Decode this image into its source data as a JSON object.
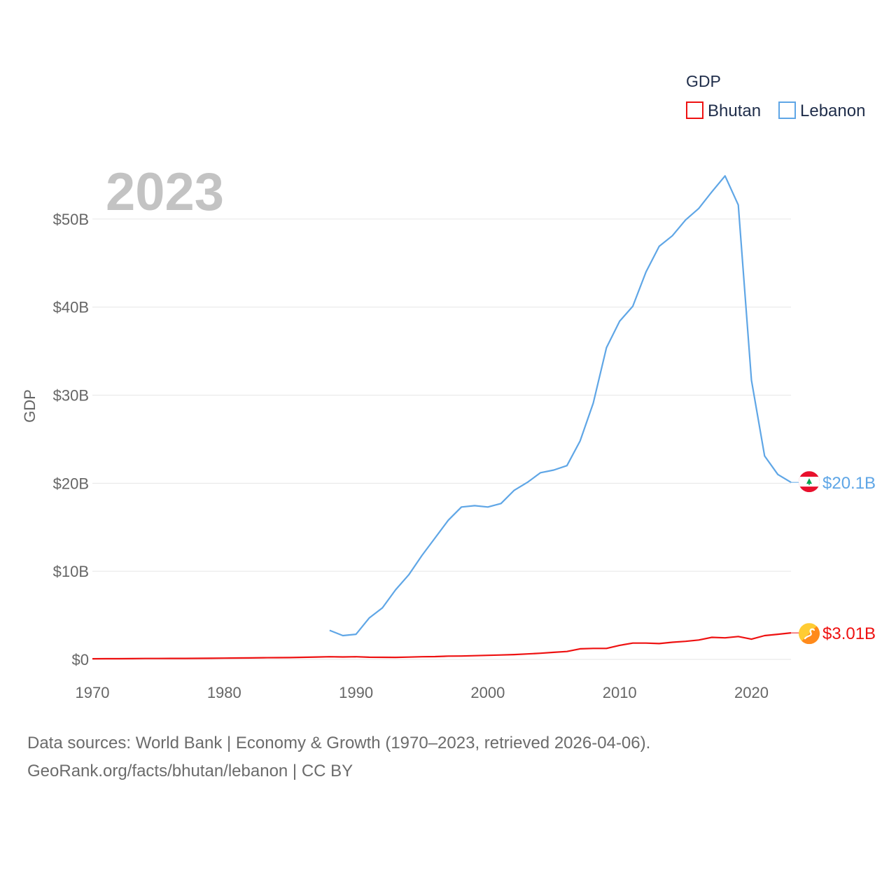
{
  "chart_data": {
    "type": "line",
    "title": "GDP",
    "year_label": "2023",
    "ylabel": "GDP",
    "xlim": [
      1970,
      2023
    ],
    "ylim": [
      0,
      55
    ],
    "x_ticks": [
      1970,
      1980,
      1990,
      2000,
      2010,
      2020
    ],
    "x_tick_labels": [
      "1970",
      "1980",
      "1990",
      "2000",
      "2010",
      "2020"
    ],
    "y_ticks": [
      0,
      10,
      20,
      30,
      40,
      50
    ],
    "y_tick_labels": [
      "$0",
      "$10B",
      "$20B",
      "$30B",
      "$40B",
      "$50B"
    ],
    "unit": "USD billions",
    "legend": {
      "title": "GDP",
      "position": "top-right"
    },
    "series": [
      {
        "name": "Bhutan",
        "color": "#ee1111",
        "end_label": "$3.01B",
        "flag_icon": "bhutan-flag-icon",
        "x": [
          1970,
          1971,
          1972,
          1973,
          1974,
          1975,
          1976,
          1977,
          1978,
          1979,
          1980,
          1981,
          1982,
          1983,
          1984,
          1985,
          1986,
          1987,
          1988,
          1989,
          1990,
          1991,
          1992,
          1993,
          1994,
          1995,
          1996,
          1997,
          1998,
          1999,
          2000,
          2001,
          2002,
          2003,
          2004,
          2005,
          2006,
          2007,
          2008,
          2009,
          2010,
          2011,
          2012,
          2013,
          2014,
          2015,
          2016,
          2017,
          2018,
          2019,
          2020,
          2021,
          2022,
          2023
        ],
        "values": [
          0.07,
          0.08,
          0.08,
          0.09,
          0.1,
          0.1,
          0.11,
          0.11,
          0.12,
          0.13,
          0.14,
          0.16,
          0.17,
          0.19,
          0.2,
          0.21,
          0.24,
          0.27,
          0.3,
          0.28,
          0.3,
          0.25,
          0.24,
          0.23,
          0.26,
          0.3,
          0.32,
          0.37,
          0.38,
          0.42,
          0.46,
          0.5,
          0.55,
          0.62,
          0.7,
          0.8,
          0.9,
          1.2,
          1.25,
          1.25,
          1.6,
          1.85,
          1.85,
          1.8,
          1.95,
          2.05,
          2.2,
          2.5,
          2.45,
          2.6,
          2.3,
          2.7,
          2.85,
          3.01
        ]
      },
      {
        "name": "Lebanon",
        "color": "#5fa6e6",
        "end_label": "$20.1B",
        "flag_icon": "lebanon-flag-icon",
        "x": [
          1988,
          1989,
          1990,
          1991,
          1992,
          1993,
          1994,
          1995,
          1996,
          1997,
          1998,
          1999,
          2000,
          2001,
          2002,
          2003,
          2004,
          2005,
          2006,
          2007,
          2008,
          2009,
          2010,
          2011,
          2012,
          2013,
          2014,
          2015,
          2016,
          2017,
          2018,
          2019,
          2020,
          2021,
          2022,
          2023
        ],
        "values": [
          3.3,
          2.7,
          2.85,
          4.7,
          5.85,
          7.9,
          9.6,
          11.8,
          13.8,
          15.8,
          17.3,
          17.45,
          17.3,
          17.7,
          19.2,
          20.1,
          21.2,
          21.5,
          22.0,
          24.8,
          29.1,
          35.4,
          38.4,
          40.1,
          44.0,
          46.9,
          48.1,
          49.9,
          51.2,
          53.1,
          54.9,
          51.6,
          31.7,
          23.1,
          21.0,
          20.1
        ]
      }
    ]
  },
  "footer": {
    "line1": "Data sources: World Bank | Economy & Growth (1970–2023, retrieved 2026-04-06).",
    "line2": "GeoRank.org/facts/bhutan/lebanon | CC BY"
  }
}
